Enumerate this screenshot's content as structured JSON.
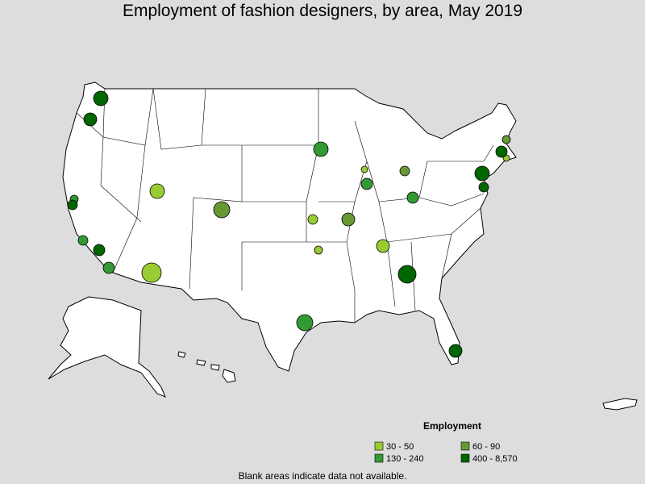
{
  "header": {
    "title": "Employment of fashion designers, by area, May 2019"
  },
  "legend": {
    "title": "Employment",
    "items": [
      {
        "label": "30 - 50",
        "color": "#99cc33"
      },
      {
        "label": "60 - 90",
        "color": "#669933"
      },
      {
        "label": "130 - 240",
        "color": "#339933"
      },
      {
        "label": "400 - 8,570",
        "color": "#006600"
      }
    ]
  },
  "footnote": "Blank areas indicate data not available."
}
